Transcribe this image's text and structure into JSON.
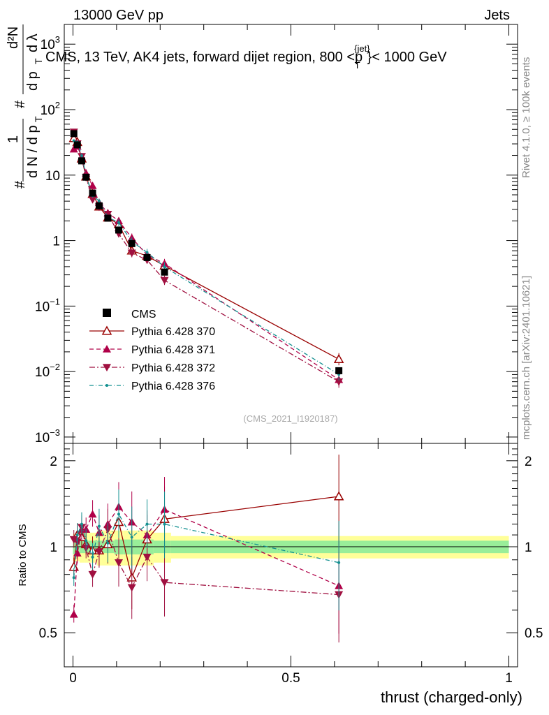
{
  "header": {
    "left": "13000 GeV pp",
    "right": "Jets"
  },
  "side_labels": {
    "rivet": "Rivet 4.1.0, ≥ 100k events",
    "mcplots": "mcplots.cern.ch [arXiv:2401.10621]"
  },
  "chart_data": {
    "type": "scatter",
    "title": "CMS, 13 TeV, AK4 jets, forward dijet region, 800 <p",
    "title_sup": "{jet}",
    "title_sub": "T",
    "title_end": "}< 1000 GeV",
    "analysis_tag": "(CMS_2021_I1920187)",
    "xlabel": "thrust (charged-only)",
    "ylabel_parts": {
      "hash": "#",
      "one": "1",
      "dN": "d N / d p",
      "T": "T",
      "num": "d²N",
      "den": "d p",
      "den2": "d λ"
    },
    "ratio_ylabel": "Ratio to CMS",
    "xlim": [
      -0.02,
      1.02
    ],
    "ylim_log": [
      0.0008,
      2000
    ],
    "ratio_ylim": [
      0.38,
      2.3
    ],
    "main_y_ticks": [
      {
        "v": 0.001,
        "base": "10",
        "exp": "−3"
      },
      {
        "v": 0.01,
        "base": "10",
        "exp": "−2"
      },
      {
        "v": 0.1,
        "base": "10",
        "exp": "−1"
      },
      {
        "v": 1,
        "base": "1",
        "exp": ""
      },
      {
        "v": 10,
        "base": "10",
        "exp": ""
      },
      {
        "v": 100,
        "base": "10",
        "exp": "2"
      },
      {
        "v": 1000,
        "base": "10",
        "exp": "3"
      }
    ],
    "x_ticks": [
      {
        "v": 0,
        "label": "0"
      },
      {
        "v": 0.5,
        "label": "0.5"
      },
      {
        "v": 1,
        "label": "1"
      }
    ],
    "ratio_y_ticks": [
      {
        "v": 0.5,
        "label": "0.5"
      },
      {
        "v": 1,
        "label": "1"
      },
      {
        "v": 2,
        "label": "2"
      }
    ],
    "x": [
      0.002,
      0.01,
      0.02,
      0.03,
      0.045,
      0.06,
      0.08,
      0.105,
      0.135,
      0.17,
      0.21,
      0.61
    ],
    "bin_edges": [
      0,
      0.005,
      0.015,
      0.025,
      0.035,
      0.055,
      0.065,
      0.095,
      0.115,
      0.155,
      0.185,
      0.225,
      1.0
    ],
    "cms": {
      "name": "CMS",
      "values": [
        43,
        29,
        16.5,
        9.3,
        5.3,
        3.4,
        2.2,
        1.45,
        0.9,
        0.55,
        0.33,
        0.0103
      ],
      "ratio_band_inner": [
        0.06,
        0.06,
        0.05,
        0.05,
        0.05,
        0.05,
        0.05,
        0.06,
        0.06,
        0.06,
        0.05,
        0.05
      ],
      "ratio_band_outer": [
        0.11,
        0.11,
        0.12,
        0.12,
        0.12,
        0.14,
        0.14,
        0.14,
        0.14,
        0.14,
        0.12,
        0.09
      ]
    },
    "series": [
      {
        "name": "Pythia 6.428 370",
        "color": "#990000",
        "marker": "triangle-open",
        "dash": "",
        "ratio": [
          0.85,
          1.1,
          1.08,
          1.02,
          0.97,
          0.97,
          1.02,
          1.22,
          0.78,
          1.06,
          1.25,
          1.5
        ]
      },
      {
        "name": "Pythia 6.428 371",
        "color": "#b00048",
        "marker": "triangle-up",
        "dash": "6,4",
        "ratio": [
          0.58,
          0.95,
          1.15,
          1.15,
          1.3,
          1.12,
          1.2,
          1.38,
          1.22,
          1.1,
          1.35,
          0.73
        ]
      },
      {
        "name": "Pythia 6.428 372",
        "color": "#a01040",
        "marker": "triangle-down",
        "dash": "8,3,2,3",
        "ratio": [
          1.06,
          1.04,
          1.17,
          0.99,
          0.8,
          0.96,
          1.15,
          0.88,
          0.72,
          0.92,
          0.75,
          0.68
        ]
      },
      {
        "name": "Pythia 6.428 376",
        "color": "#139090",
        "marker": "dot",
        "dash": "6,3,1,3",
        "ratio": [
          0.78,
          1.1,
          1.2,
          1.05,
          0.92,
          1.18,
          1.03,
          1.3,
          1.08,
          1.2,
          1.2,
          0.88
        ]
      }
    ],
    "ratio_errors": [
      0.08,
      0.1,
      0.1,
      0.1,
      0.12,
      0.15,
      0.18,
      0.22,
      0.28,
      0.22,
      0.3,
      0.4
    ]
  }
}
